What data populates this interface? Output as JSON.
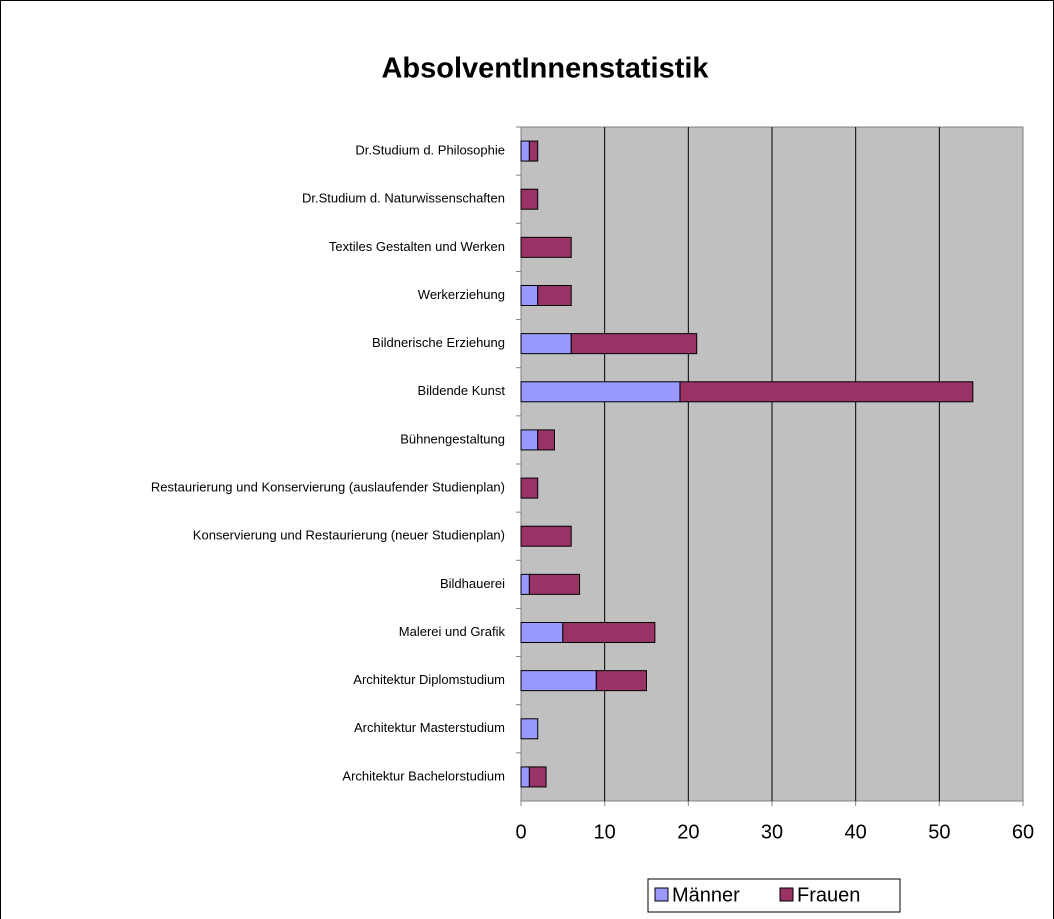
{
  "chart_data": {
    "type": "stacked_barh",
    "title": "AbsolventInnenstatistik",
    "categories": [
      "Dr.Studium d. Philosophie",
      "Dr.Studium d. Naturwissenschaften",
      "Textiles Gestalten und Werken",
      "Werkerziehung",
      "Bildnerische Erziehung",
      "Bildende Kunst",
      "Bühnengestaltung",
      "Restaurierung und Konservierung (auslaufender Studienplan)",
      "Konservierung und Restaurierung (neuer Studienplan)",
      "Bildhauerei",
      "Malerei und Grafik",
      "Architektur Diplomstudium",
      "Architektur Masterstudium",
      "Architektur Bachelorstudium"
    ],
    "series": [
      {
        "name": "Männer",
        "color": "#9999ff",
        "values": [
          1,
          0,
          0,
          2,
          6,
          19,
          2,
          0,
          0,
          1,
          5,
          9,
          2,
          1
        ]
      },
      {
        "name": "Frauen",
        "color": "#993366",
        "values": [
          1,
          2,
          6,
          4,
          15,
          35,
          2,
          2,
          6,
          6,
          11,
          6,
          0,
          2
        ]
      }
    ],
    "xlim": [
      0,
      60
    ],
    "xticks": [
      0,
      10,
      20,
      30,
      40,
      50,
      60
    ],
    "grid": true,
    "legend": "bottom"
  }
}
